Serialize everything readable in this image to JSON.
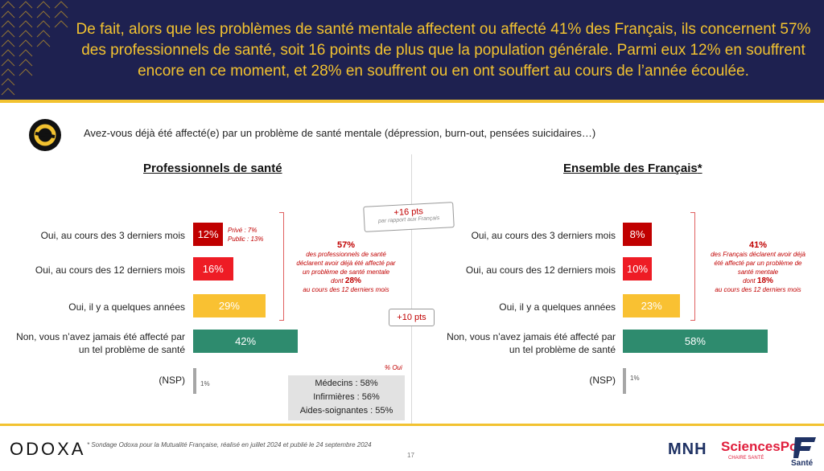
{
  "header": {
    "title": "De fait, alors que les problèmes de santé mentale affectent ou affecté 41% des Français, ils concernent 57% des professionnels de santé, soit 16 points de plus que la population générale. Parmi eux 12% en souffrent encore en ce moment, et 28% en souffrent ou en ont souffert au cours de l’année écoulée."
  },
  "question": "Avez-vous déjà été affecté(e) par un problème de santé mentale (dépression, burn-out, pensées suicidaires…)",
  "colors": {
    "navy": "#1e2150",
    "gold": "#f2c230",
    "dark_red": "#c00000",
    "red": "#ee1c25",
    "yellow": "#f9c132",
    "green": "#2e8b6e",
    "gray": "#a6a6a6"
  },
  "chart_data": [
    {
      "type": "bar",
      "title": "Professionnels de santé",
      "categories": [
        "Oui, au cours des 3 derniers mois",
        "Oui, au cours des 12 derniers mois",
        "Oui, il y a quelques années",
        "Non, vous n’avez jamais été affecté par un tel problème de santé",
        "(NSP)"
      ],
      "values": [
        12,
        16,
        29,
        42,
        1
      ],
      "value_labels": [
        "12%",
        "16%",
        "29%",
        "42%",
        "1%"
      ]
    },
    {
      "type": "bar",
      "title": "Ensemble des Français",
      "title_mark": "*",
      "categories": [
        "Oui, au cours des 3 derniers mois",
        "Oui, au cours des 12 derniers mois",
        "Oui, il y a quelques années",
        "Non, vous n’avez jamais été affecté par un tel problème de santé",
        "(NSP)"
      ],
      "values": [
        8,
        10,
        23,
        58,
        1
      ],
      "value_labels": [
        "8%",
        "10%",
        "23%",
        "58%",
        "1%"
      ]
    }
  ],
  "notes": {
    "prive": "Privé : 7%",
    "public": "Public : 13%",
    "left_total": "57%",
    "left_line1": "des professionnels de santé",
    "left_line2": "déclarent avoir déjà été affecté par",
    "left_line3": "un problème de santé mentale",
    "left_dont": "dont",
    "left_sub": "28%",
    "left_line4": "au cours des 12 derniers mois",
    "right_total": "41%",
    "right_line1": "des Français déclarent avoir déjà",
    "right_line2": "été affecté par un problème de",
    "right_line3": "santé mentale",
    "right_dont": "dont",
    "right_sub": "18%",
    "right_line4": "au cours des 12 derniers mois",
    "diff1": "+16 pts",
    "diff1_sub": "par rapport aux Français",
    "diff2": "+10 pts",
    "pct_oui": "% Oui",
    "professions": [
      "Médecins : 58%",
      "Infirmières : 56%",
      "Aides-soignantes : 55%"
    ]
  },
  "footer": {
    "brand": "ODOXA",
    "source": "* Sondage Odoxa pour la Mutualité Française, réalisé en juillet 2024 et publié le 24 septembre 2024",
    "page": "17",
    "logo1": "MNH",
    "logo2": "SciencesPo",
    "logo2_sub": "CHAIRE SANTÉ",
    "logo3": "Santé"
  }
}
